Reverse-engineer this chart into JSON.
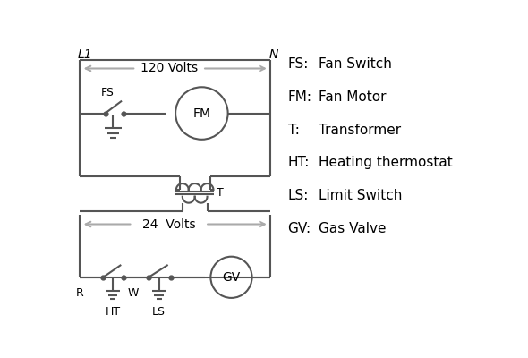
{
  "background": "#ffffff",
  "line_color": "#555555",
  "arrow_color": "#aaaaaa",
  "line_width": 1.5,
  "legend_items": [
    [
      "FS:",
      "Fan Switch"
    ],
    [
      "FM:",
      "Fan Motor"
    ],
    [
      "T:",
      "Transformer"
    ],
    [
      "HT:",
      "Heating thermostat"
    ],
    [
      "LS:",
      "Limit Switch"
    ],
    [
      "GV:",
      "Gas Valve"
    ]
  ],
  "label_L1": "L1",
  "label_N": "N",
  "label_120V": "120 Volts",
  "label_24V": "24  Volts",
  "label_FS": "FS",
  "label_FM": "FM",
  "label_T": "T",
  "label_R": "R",
  "label_W": "W",
  "label_HT": "HT",
  "label_LS": "LS",
  "label_GV": "GV"
}
